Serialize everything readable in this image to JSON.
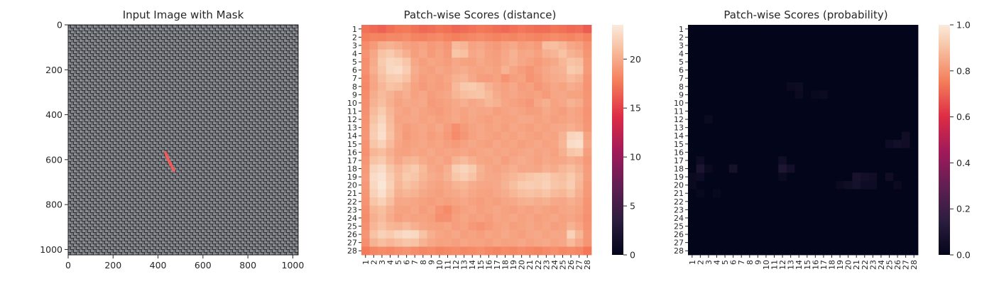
{
  "chart_data": [
    {
      "type": "image",
      "title": "Input Image with Mask",
      "xlabel": "",
      "ylabel": "",
      "xlim": [
        0,
        1024
      ],
      "ylim": [
        1024,
        0
      ],
      "x_ticks": [
        "0",
        "200",
        "400",
        "600",
        "800",
        "1000"
      ],
      "y_ticks": [
        "0",
        "200",
        "400",
        "600",
        "800",
        "1000"
      ],
      "image_description": "gray woven fabric texture",
      "mask_color": "#f05a5a",
      "mask_stroke": [
        [
          425,
          570
        ],
        [
          445,
          600
        ],
        [
          465,
          640
        ]
      ]
    },
    {
      "type": "heatmap",
      "title": "Patch-wise Scores (distance)",
      "xlabel": "",
      "ylabel": "",
      "x_ticks": [
        "1",
        "2",
        "3",
        "4",
        "5",
        "6",
        "7",
        "8",
        "9",
        "10",
        "11",
        "12",
        "13",
        "14",
        "15",
        "16",
        "17",
        "18",
        "19",
        "20",
        "21",
        "22",
        "23",
        "24",
        "25",
        "26",
        "27",
        "28"
      ],
      "y_ticks": [
        "1",
        "2",
        "3",
        "4",
        "5",
        "6",
        "7",
        "8",
        "9",
        "10",
        "11",
        "12",
        "13",
        "14",
        "15",
        "16",
        "17",
        "18",
        "19",
        "20",
        "21",
        "22",
        "23",
        "24",
        "25",
        "26",
        "27",
        "28"
      ],
      "colorbar": {
        "min": 0,
        "max": 23.5,
        "ticks": [
          "0",
          "5",
          "10",
          "15",
          "20"
        ]
      },
      "values": [
        [
          17.2,
          16.8,
          16.5,
          17.0,
          17.4,
          17.6,
          17.2,
          16.8,
          17.0,
          17.3,
          17.1,
          16.7,
          16.9,
          17.2,
          17.5,
          17.3,
          17.0,
          16.8,
          17.1,
          17.4,
          17.2,
          16.9,
          17.0,
          17.3,
          17.1,
          16.8,
          17.0,
          16.2
        ],
        [
          17.8,
          18.1,
          18.0,
          18.3,
          18.2,
          18.5,
          18.1,
          17.9,
          18.2,
          18.4,
          18.0,
          17.8,
          18.1,
          18.3,
          18.5,
          18.2,
          18.0,
          18.3,
          18.1,
          18.4,
          18.2,
          18.0,
          18.2,
          18.5,
          18.3,
          18.1,
          18.4,
          17.9
        ],
        [
          18.5,
          19.2,
          20.1,
          20.4,
          20.0,
          19.5,
          19.3,
          19.6,
          19.1,
          19.4,
          19.0,
          20.8,
          20.5,
          19.6,
          19.8,
          19.4,
          19.1,
          19.6,
          19.9,
          19.3,
          19.5,
          19.2,
          20.9,
          21.0,
          20.6,
          19.8,
          19.5,
          18.7
        ],
        [
          18.8,
          19.8,
          21.2,
          21.6,
          21.0,
          20.2,
          19.4,
          19.8,
          19.2,
          19.6,
          19.1,
          21.4,
          21.1,
          19.8,
          20.1,
          19.5,
          19.3,
          19.8,
          20.4,
          19.7,
          19.9,
          19.5,
          20.2,
          20.5,
          21.2,
          20.4,
          20.0,
          18.9
        ],
        [
          18.6,
          20.0,
          21.6,
          22.3,
          22.1,
          21.4,
          19.8,
          19.4,
          19.7,
          19.5,
          19.3,
          19.8,
          19.6,
          19.5,
          19.9,
          19.6,
          19.4,
          19.9,
          20.3,
          19.8,
          19.5,
          19.2,
          19.6,
          19.9,
          20.6,
          21.2,
          21.0,
          19.1
        ],
        [
          18.7,
          20.2,
          21.4,
          22.4,
          22.6,
          21.8,
          20.1,
          19.6,
          19.4,
          19.8,
          19.5,
          19.9,
          20.1,
          19.7,
          19.6,
          19.8,
          19.5,
          20.4,
          19.7,
          19.3,
          18.9,
          19.4,
          19.8,
          20.2,
          20.4,
          21.6,
          21.4,
          19.2
        ],
        [
          18.4,
          19.8,
          21.0,
          21.6,
          21.8,
          21.2,
          19.9,
          19.3,
          19.6,
          19.4,
          19.7,
          20.3,
          20.5,
          19.9,
          19.4,
          19.3,
          19.6,
          18.8,
          19.4,
          19.6,
          18.8,
          19.2,
          19.7,
          20.0,
          20.2,
          20.8,
          20.4,
          18.9
        ],
        [
          18.3,
          19.7,
          20.6,
          21.2,
          21.0,
          20.4,
          19.6,
          19.2,
          19.5,
          19.3,
          19.6,
          20.7,
          21.5,
          21.6,
          21.2,
          20.4,
          19.8,
          19.5,
          19.9,
          19.3,
          19.5,
          19.0,
          19.4,
          19.8,
          19.6,
          20.1,
          19.8,
          18.8
        ],
        [
          18.5,
          20.1,
          20.8,
          20.4,
          19.8,
          20.2,
          19.5,
          19.8,
          19.3,
          19.6,
          19.8,
          20.5,
          21.0,
          21.2,
          21.4,
          20.8,
          20.0,
          19.6,
          19.8,
          19.5,
          19.4,
          19.6,
          19.2,
          19.7,
          19.8,
          19.6,
          19.5,
          18.9
        ],
        [
          18.6,
          20.4,
          21.0,
          20.2,
          19.6,
          19.9,
          19.7,
          19.9,
          19.2,
          19.4,
          19.6,
          19.9,
          20.2,
          19.8,
          20.1,
          20.6,
          20.3,
          19.7,
          19.5,
          19.3,
          19.0,
          19.8,
          20.2,
          19.6,
          19.8,
          20.4,
          20.0,
          19.0
        ],
        [
          18.7,
          20.8,
          21.6,
          20.6,
          19.8,
          19.5,
          19.9,
          19.6,
          19.4,
          19.2,
          19.5,
          19.8,
          19.6,
          19.9,
          19.7,
          19.8,
          19.4,
          19.6,
          19.8,
          19.6,
          19.3,
          19.4,
          19.9,
          19.6,
          19.3,
          19.8,
          19.5,
          18.8
        ],
        [
          18.8,
          21.2,
          22.2,
          20.8,
          19.6,
          19.7,
          19.8,
          19.5,
          19.7,
          19.4,
          19.6,
          19.9,
          19.5,
          19.8,
          19.6,
          19.4,
          19.7,
          19.5,
          19.6,
          19.9,
          19.8,
          19.5,
          19.7,
          19.4,
          19.6,
          19.8,
          19.6,
          18.9
        ],
        [
          18.9,
          21.6,
          22.6,
          21.0,
          19.8,
          19.3,
          19.6,
          19.8,
          19.5,
          19.9,
          19.3,
          18.6,
          19.2,
          19.6,
          19.8,
          19.5,
          19.7,
          19.4,
          19.8,
          19.6,
          19.4,
          19.7,
          19.5,
          19.8,
          19.9,
          20.2,
          19.8,
          19.0
        ],
        [
          19.0,
          21.8,
          22.8,
          21.2,
          19.9,
          19.2,
          19.5,
          19.7,
          19.3,
          19.6,
          19.1,
          18.4,
          19.0,
          19.5,
          19.8,
          19.6,
          19.4,
          19.7,
          19.5,
          19.8,
          19.6,
          19.4,
          19.7,
          19.6,
          20.4,
          22.2,
          22.4,
          19.6
        ],
        [
          18.8,
          21.4,
          22.0,
          20.8,
          19.7,
          19.4,
          19.6,
          19.8,
          19.5,
          19.7,
          19.4,
          19.2,
          19.5,
          19.8,
          19.6,
          19.4,
          19.8,
          19.5,
          19.7,
          19.4,
          19.6,
          19.8,
          19.5,
          19.7,
          20.6,
          22.6,
          22.8,
          19.8
        ],
        [
          18.7,
          20.6,
          21.0,
          20.2,
          19.6,
          19.5,
          19.8,
          19.6,
          19.9,
          19.5,
          19.7,
          19.6,
          19.8,
          19.5,
          19.7,
          19.9,
          19.6,
          19.8,
          19.5,
          19.7,
          19.9,
          19.6,
          19.8,
          19.5,
          20.2,
          21.4,
          21.6,
          19.4
        ],
        [
          19.0,
          21.2,
          21.6,
          20.6,
          19.8,
          20.4,
          20.6,
          20.0,
          19.6,
          19.9,
          19.5,
          20.4,
          20.8,
          20.2,
          19.7,
          19.6,
          19.9,
          19.4,
          19.8,
          20.1,
          19.8,
          19.5,
          19.9,
          19.7,
          19.8,
          20.2,
          19.9,
          19.1
        ],
        [
          19.2,
          22.2,
          22.6,
          21.4,
          20.6,
          21.2,
          21.6,
          20.8,
          19.9,
          19.6,
          20.2,
          21.8,
          22.2,
          21.6,
          20.4,
          19.8,
          19.6,
          19.9,
          20.2,
          19.8,
          19.9,
          19.7,
          20.3,
          20.0,
          20.6,
          21.0,
          20.4,
          19.3
        ],
        [
          19.3,
          22.6,
          23.0,
          21.8,
          20.8,
          21.6,
          21.4,
          20.6,
          20.1,
          19.8,
          20.4,
          21.4,
          21.8,
          21.2,
          20.2,
          19.9,
          19.8,
          20.2,
          20.6,
          21.0,
          21.4,
          21.6,
          21.8,
          21.2,
          21.0,
          21.6,
          20.8,
          19.4
        ],
        [
          19.1,
          22.4,
          23.2,
          22.0,
          20.6,
          21.2,
          20.8,
          20.2,
          19.8,
          19.6,
          19.9,
          20.4,
          20.6,
          20.1,
          19.8,
          19.7,
          19.9,
          20.4,
          21.0,
          21.6,
          21.8,
          21.6,
          22.0,
          21.4,
          21.2,
          21.8,
          20.6,
          19.2
        ],
        [
          19.0,
          22.0,
          22.8,
          21.6,
          20.2,
          20.6,
          20.4,
          19.9,
          19.6,
          19.4,
          19.7,
          19.9,
          20.2,
          19.8,
          19.6,
          19.5,
          19.8,
          20.1,
          20.6,
          21.0,
          21.2,
          21.0,
          21.4,
          20.8,
          20.6,
          21.2,
          20.2,
          19.1
        ],
        [
          18.8,
          21.4,
          22.0,
          21.0,
          19.8,
          19.9,
          19.7,
          19.5,
          19.3,
          19.6,
          19.4,
          19.6,
          19.8,
          19.5,
          19.3,
          19.6,
          19.4,
          19.7,
          19.9,
          20.2,
          20.4,
          20.1,
          20.3,
          19.9,
          19.8,
          20.2,
          19.8,
          18.9
        ],
        [
          18.6,
          20.6,
          21.0,
          20.2,
          19.6,
          19.5,
          19.8,
          19.3,
          19.6,
          18.8,
          18.4,
          19.2,
          19.5,
          19.7,
          19.4,
          19.6,
          19.8,
          19.5,
          19.4,
          19.7,
          19.5,
          19.8,
          19.6,
          19.4,
          19.7,
          19.9,
          19.6,
          18.8
        ],
        [
          18.5,
          20.2,
          20.8,
          20.0,
          19.4,
          19.7,
          19.5,
          19.6,
          19.4,
          18.6,
          18.7,
          19.4,
          19.7,
          19.4,
          19.6,
          19.3,
          19.7,
          19.6,
          19.8,
          19.5,
          19.7,
          19.4,
          19.6,
          19.8,
          19.5,
          19.7,
          19.4,
          18.7
        ],
        [
          18.7,
          20.6,
          21.2,
          20.6,
          20.4,
          20.8,
          20.2,
          19.8,
          19.6,
          19.5,
          19.7,
          19.3,
          19.6,
          19.1,
          18.8,
          19.2,
          19.5,
          19.7,
          19.4,
          19.6,
          19.8,
          19.5,
          19.7,
          19.4,
          19.6,
          20.4,
          19.7,
          18.8
        ],
        [
          18.9,
          21.2,
          22.0,
          21.6,
          22.2,
          22.6,
          22.4,
          21.2,
          20.2,
          19.7,
          19.5,
          19.8,
          19.4,
          19.6,
          19.3,
          19.7,
          19.5,
          19.9,
          19.6,
          19.4,
          19.7,
          19.9,
          19.6,
          19.8,
          19.7,
          22.0,
          20.6,
          19.0
        ],
        [
          18.6,
          20.4,
          21.0,
          20.6,
          21.0,
          21.4,
          21.2,
          20.4,
          19.8,
          19.5,
          19.6,
          19.4,
          19.7,
          19.5,
          19.6,
          19.4,
          19.7,
          19.5,
          19.6,
          19.8,
          19.5,
          19.7,
          19.9,
          19.6,
          19.8,
          20.8,
          19.9,
          18.9
        ],
        [
          17.6,
          18.2,
          18.5,
          18.3,
          18.6,
          18.8,
          18.5,
          18.2,
          18.4,
          18.1,
          18.3,
          18.5,
          18.2,
          18.4,
          18.6,
          18.3,
          18.1,
          18.4,
          18.2,
          18.5,
          18.3,
          18.1,
          18.4,
          18.6,
          18.3,
          18.5,
          18.2,
          17.4
        ]
      ]
    },
    {
      "type": "heatmap",
      "title": "Patch-wise Scores (probability)",
      "xlabel": "",
      "ylabel": "",
      "x_ticks": [
        "1",
        "2",
        "3",
        "4",
        "5",
        "6",
        "7",
        "8",
        "9",
        "10",
        "11",
        "12",
        "13",
        "14",
        "15",
        "16",
        "17",
        "18",
        "19",
        "20",
        "21",
        "22",
        "23",
        "24",
        "25",
        "26",
        "27",
        "28"
      ],
      "y_ticks": [
        "1",
        "2",
        "3",
        "4",
        "5",
        "6",
        "7",
        "8",
        "9",
        "10",
        "11",
        "12",
        "13",
        "14",
        "15",
        "16",
        "17",
        "18",
        "19",
        "20",
        "21",
        "22",
        "23",
        "24",
        "25",
        "26",
        "27",
        "28"
      ],
      "colorbar": {
        "min": 0,
        "max": 1.0,
        "ticks": [
          "0.0",
          "0.2",
          "0.4",
          "0.6",
          "0.8",
          "1.0"
        ]
      },
      "background_value": 0.0,
      "nonzero_cells": [
        {
          "row": 8,
          "col": 13,
          "value": 0.03
        },
        {
          "row": 8,
          "col": 14,
          "value": 0.04
        },
        {
          "row": 9,
          "col": 14,
          "value": 0.03
        },
        {
          "row": 9,
          "col": 16,
          "value": 0.02
        },
        {
          "row": 9,
          "col": 17,
          "value": 0.03
        },
        {
          "row": 12,
          "col": 3,
          "value": 0.03
        },
        {
          "row": 14,
          "col": 27,
          "value": 0.05
        },
        {
          "row": 15,
          "col": 25,
          "value": 0.04
        },
        {
          "row": 15,
          "col": 26,
          "value": 0.06
        },
        {
          "row": 15,
          "col": 27,
          "value": 0.05
        },
        {
          "row": 17,
          "col": 2,
          "value": 0.04
        },
        {
          "row": 17,
          "col": 12,
          "value": 0.05
        },
        {
          "row": 18,
          "col": 2,
          "value": 0.09
        },
        {
          "row": 18,
          "col": 3,
          "value": 0.03
        },
        {
          "row": 18,
          "col": 6,
          "value": 0.07
        },
        {
          "row": 18,
          "col": 12,
          "value": 0.1
        },
        {
          "row": 18,
          "col": 13,
          "value": 0.06
        },
        {
          "row": 19,
          "col": 1,
          "value": 0.03
        },
        {
          "row": 19,
          "col": 2,
          "value": 0.04
        },
        {
          "row": 19,
          "col": 12,
          "value": 0.03
        },
        {
          "row": 19,
          "col": 21,
          "value": 0.08
        },
        {
          "row": 19,
          "col": 22,
          "value": 0.06
        },
        {
          "row": 19,
          "col": 23,
          "value": 0.05
        },
        {
          "row": 19,
          "col": 25,
          "value": 0.05
        },
        {
          "row": 20,
          "col": 1,
          "value": 0.03
        },
        {
          "row": 20,
          "col": 19,
          "value": 0.03
        },
        {
          "row": 20,
          "col": 20,
          "value": 0.05
        },
        {
          "row": 20,
          "col": 21,
          "value": 0.07
        },
        {
          "row": 20,
          "col": 22,
          "value": 0.04
        },
        {
          "row": 20,
          "col": 23,
          "value": 0.04
        },
        {
          "row": 20,
          "col": 26,
          "value": 0.03
        },
        {
          "row": 21,
          "col": 2,
          "value": 0.02
        },
        {
          "row": 21,
          "col": 4,
          "value": 0.02
        }
      ]
    }
  ]
}
